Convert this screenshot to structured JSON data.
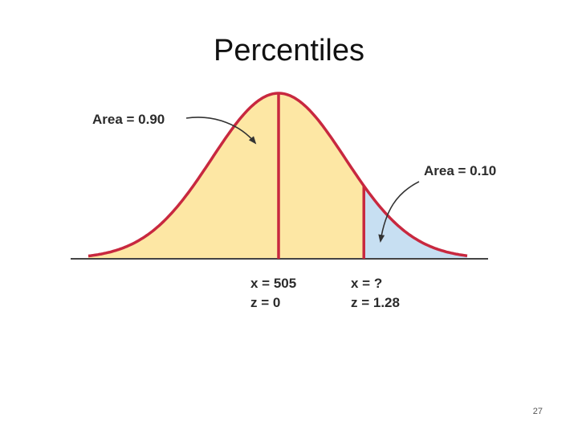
{
  "slide": {
    "title": "Percentiles",
    "page_number": "27"
  },
  "figure": {
    "left_area_label": "Area = 0.90",
    "right_area_label": "Area = 0.10",
    "mean_x_label": "x = 505",
    "mean_z_label": "z = 0",
    "cut_x_label": "x = ?",
    "cut_z_label": "z = 1.28",
    "colors": {
      "curve": "#c8283f",
      "left_fill": "#fde7a4",
      "right_fill": "#c7dff2",
      "baseline": "#444444",
      "arrow": "#333333"
    }
  }
}
